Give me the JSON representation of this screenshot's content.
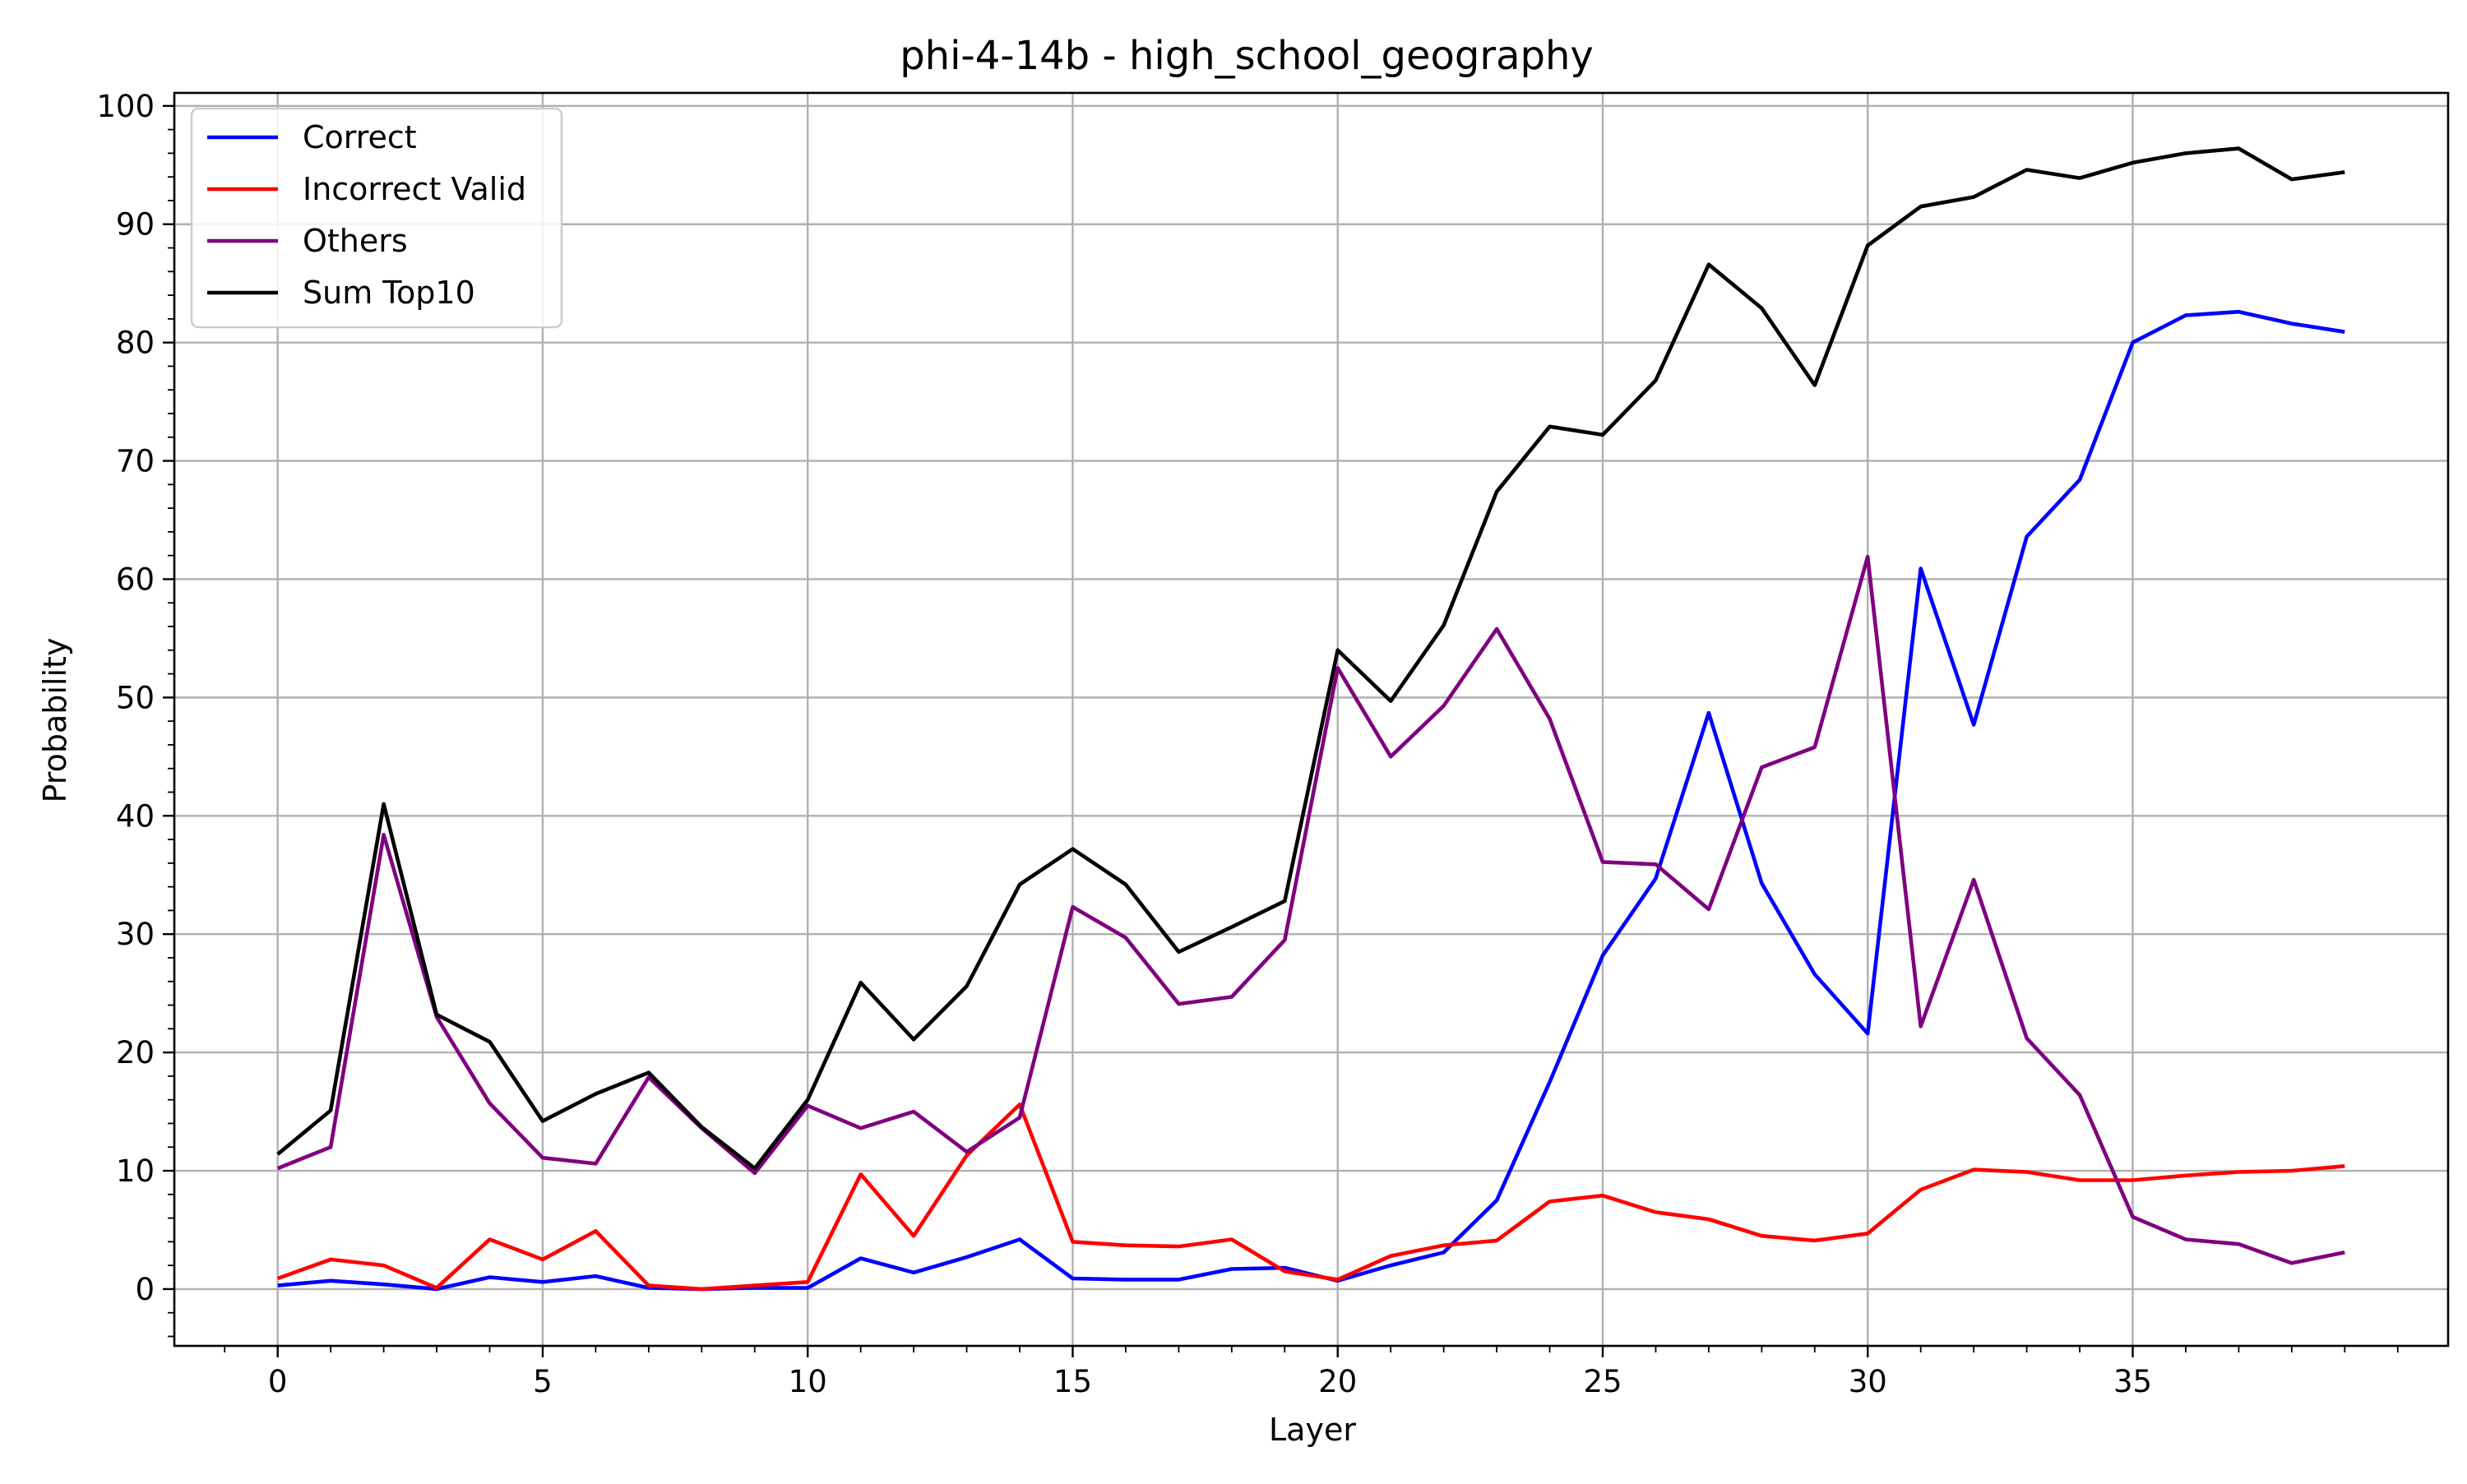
{
  "chart_data": {
    "type": "line",
    "title": "phi-4-14b - high_school_geography",
    "xlabel": "Layer",
    "ylabel": "Probability",
    "xlim": [
      -1.95,
      40.95
    ],
    "ylim": [
      -4.8,
      101.1
    ],
    "x_ticks": [
      0,
      5,
      10,
      15,
      20,
      25,
      30,
      35
    ],
    "y_ticks": [
      0,
      10,
      20,
      30,
      40,
      50,
      60,
      70,
      80,
      90,
      100
    ],
    "grid": true,
    "legend_position": "top-left",
    "x": [
      0,
      1,
      2,
      3,
      4,
      5,
      6,
      7,
      8,
      9,
      10,
      11,
      12,
      13,
      14,
      15,
      16,
      17,
      18,
      19,
      20,
      21,
      22,
      23,
      24,
      25,
      26,
      27,
      28,
      29,
      30,
      31,
      32,
      33,
      34,
      35,
      36,
      37,
      38,
      39
    ],
    "series": [
      {
        "name": "Correct",
        "color": "#0000ff",
        "values": [
          0.3,
          0.7,
          0.4,
          0.0,
          1.0,
          0.6,
          1.1,
          0.1,
          0.0,
          0.1,
          0.1,
          2.6,
          1.4,
          2.7,
          4.2,
          0.9,
          0.8,
          0.8,
          1.7,
          1.8,
          0.7,
          2.0,
          3.1,
          7.5,
          17.5,
          28.2,
          34.7,
          48.7,
          34.3,
          26.6,
          21.6,
          60.9,
          47.7,
          63.6,
          68.4,
          80.0,
          82.3,
          82.6,
          81.6,
          80.9
        ]
      },
      {
        "name": "Incorrect Valid",
        "color": "#ff0000",
        "values": [
          0.9,
          2.5,
          2.0,
          0.1,
          4.2,
          2.5,
          4.9,
          0.3,
          0.0,
          0.3,
          0.6,
          9.7,
          4.5,
          11.3,
          15.6,
          4.0,
          3.7,
          3.6,
          4.2,
          1.5,
          0.8,
          2.8,
          3.7,
          4.1,
          7.4,
          7.9,
          6.5,
          5.9,
          4.5,
          4.1,
          4.7,
          8.4,
          10.1,
          9.9,
          9.2,
          9.2,
          9.6,
          9.9,
          10.0,
          10.4
        ]
      },
      {
        "name": "Others",
        "color": "#7f007f",
        "values": [
          10.2,
          12.0,
          38.4,
          23.0,
          15.7,
          11.1,
          10.6,
          17.9,
          13.6,
          9.8,
          15.5,
          13.6,
          15.0,
          11.6,
          14.5,
          32.3,
          29.7,
          24.1,
          24.7,
          29.5,
          52.5,
          45.0,
          49.3,
          55.8,
          48.2,
          36.1,
          35.9,
          32.1,
          44.1,
          45.8,
          61.9,
          22.2,
          34.6,
          21.2,
          16.4,
          6.1,
          4.2,
          3.8,
          2.2,
          3.1
        ]
      },
      {
        "name": "Sum Top10",
        "color": "#000000",
        "values": [
          11.4,
          15.1,
          41.0,
          23.2,
          20.9,
          14.2,
          16.5,
          18.3,
          13.7,
          10.2,
          16.0,
          25.9,
          21.1,
          25.6,
          34.2,
          37.2,
          34.2,
          28.5,
          30.6,
          32.8,
          54.0,
          49.7,
          56.1,
          67.4,
          72.9,
          72.2,
          76.8,
          86.6,
          82.9,
          76.4,
          88.2,
          91.5,
          92.3,
          94.6,
          93.9,
          95.2,
          96.0,
          96.4,
          93.8,
          94.4
        ]
      }
    ]
  }
}
